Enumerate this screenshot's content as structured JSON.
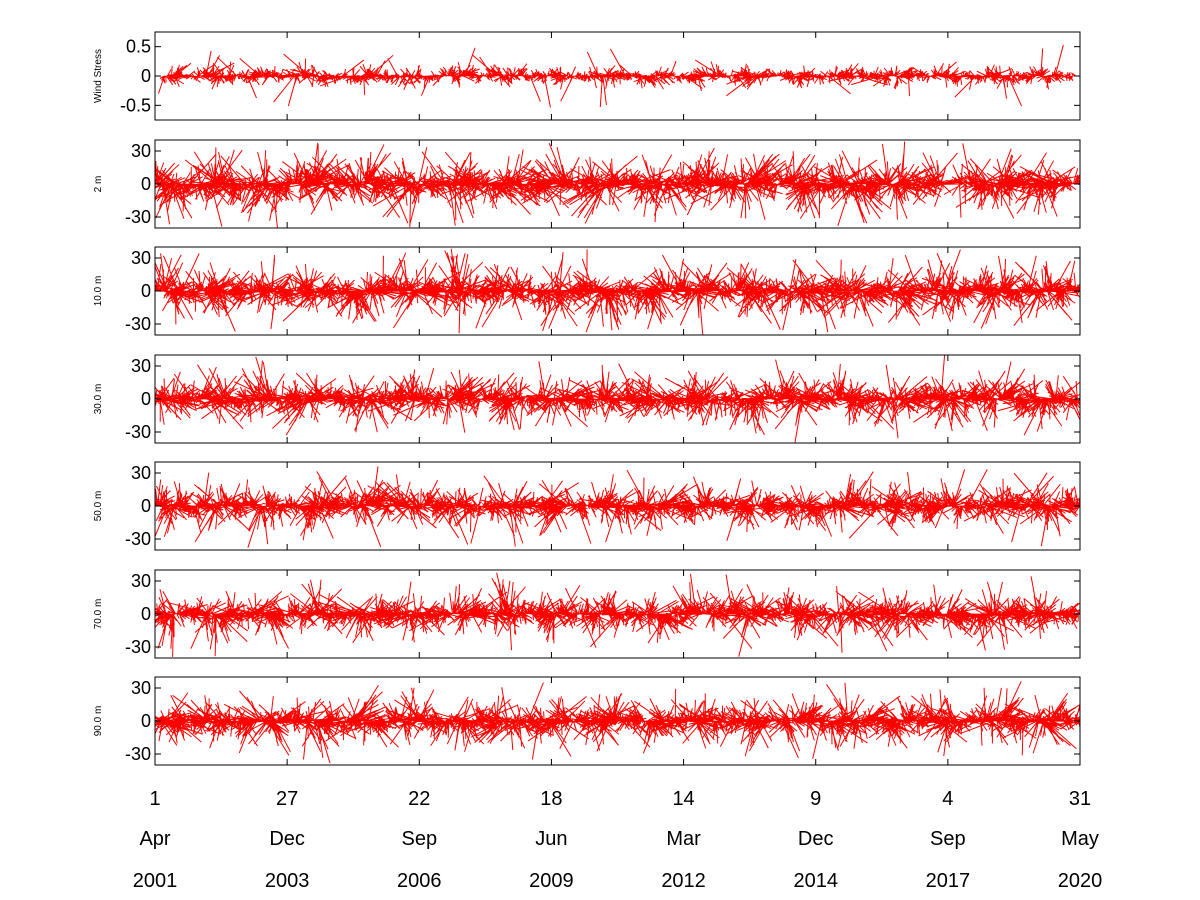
{
  "chart_data": {
    "type": "stick-plot",
    "title": "",
    "color": "#ff0000",
    "x_start": "2001-04-01",
    "x_end": "2020-05-31",
    "panels": [
      {
        "name": "Wind Stress",
        "ylabel": "Wind Stress",
        "ylim": [
          -0.75,
          0.75
        ],
        "yticks": [
          0.5,
          0,
          -0.5
        ],
        "ytick_labels": [
          "0.5",
          "0",
          "-0.5"
        ],
        "amplitude_typical": 0.2,
        "amplitude_max": 0.6,
        "segments": [
          [
            "2001-06-01",
            "2020-04-15"
          ]
        ]
      },
      {
        "name": "2 m",
        "ylabel": "2 m",
        "ylim": [
          -40,
          40
        ],
        "yticks": [
          30,
          0,
          -30
        ],
        "ytick_labels": [
          "30",
          "0",
          "-30"
        ],
        "amplitude_typical": 30,
        "amplitude_max": 40,
        "segments": [
          [
            "2001-04-01",
            "2017-08-01"
          ],
          [
            "2017-12-01",
            "2020-05-31"
          ]
        ]
      },
      {
        "name": "10.0 m",
        "ylabel": "10.0 m",
        "ylim": [
          -40,
          40
        ],
        "yticks": [
          30,
          0,
          -30
        ],
        "ytick_labels": [
          "30",
          "0",
          "-30"
        ],
        "amplitude_typical": 28,
        "amplitude_max": 40,
        "segments": [
          [
            "2001-04-01",
            "2008-12-01"
          ],
          [
            "2008-12-15",
            "2012-10-01"
          ],
          [
            "2012-10-15",
            "2016-11-01"
          ],
          [
            "2016-11-15",
            "2020-05-31"
          ]
        ]
      },
      {
        "name": "30.0 m",
        "ylabel": "30.0 m",
        "ylim": [
          -40,
          40
        ],
        "yticks": [
          30,
          0,
          -30
        ],
        "ytick_labels": [
          "30",
          "0",
          "-30"
        ],
        "amplitude_typical": 26,
        "amplitude_max": 40,
        "segments": [
          [
            "2001-04-01",
            "2008-12-01"
          ],
          [
            "2008-12-15",
            "2012-10-01"
          ],
          [
            "2012-10-15",
            "2016-11-01"
          ],
          [
            "2016-11-15",
            "2020-05-31"
          ]
        ]
      },
      {
        "name": "50.0 m",
        "ylabel": "50.0 m",
        "ylim": [
          -40,
          40
        ],
        "yticks": [
          30,
          0,
          -30
        ],
        "ytick_labels": [
          "30",
          "0",
          "-30"
        ],
        "amplitude_typical": 24,
        "amplitude_max": 40,
        "segments": [
          [
            "2001-04-01",
            "2008-12-01"
          ],
          [
            "2008-12-15",
            "2012-10-01"
          ],
          [
            "2012-10-15",
            "2016-11-01"
          ],
          [
            "2016-11-15",
            "2020-05-31"
          ]
        ]
      },
      {
        "name": "70.0 m",
        "ylabel": "70.0 m",
        "ylim": [
          -40,
          40
        ],
        "yticks": [
          30,
          0,
          -30
        ],
        "ytick_labels": [
          "30",
          "0",
          "-30"
        ],
        "amplitude_typical": 24,
        "amplitude_max": 40,
        "segments": [
          [
            "2001-04-01",
            "2008-12-01"
          ],
          [
            "2008-12-15",
            "2012-10-01"
          ],
          [
            "2012-10-15",
            "2018-03-01"
          ],
          [
            "2018-03-15",
            "2020-05-31"
          ]
        ]
      },
      {
        "name": "90.0 m",
        "ylabel": "90.0 m",
        "ylim": [
          -40,
          40
        ],
        "yticks": [
          30,
          0,
          -30
        ],
        "ytick_labels": [
          "30",
          "0",
          "-30"
        ],
        "amplitude_typical": 26,
        "amplitude_max": 40,
        "segments": [
          [
            "2001-04-01",
            "2008-12-01"
          ],
          [
            "2008-12-15",
            "2012-10-01"
          ],
          [
            "2012-10-15",
            "2018-03-01"
          ],
          [
            "2018-03-15",
            "2020-05-31"
          ]
        ]
      }
    ],
    "x_ticks": [
      {
        "date": "2001-04-01",
        "day": "1",
        "month": "Apr",
        "year": "2001"
      },
      {
        "date": "2003-12-27",
        "day": "27",
        "month": "Dec",
        "year": "2003"
      },
      {
        "date": "2006-09-22",
        "day": "22",
        "month": "Sep",
        "year": "2006"
      },
      {
        "date": "2009-06-18",
        "day": "18",
        "month": "Jun",
        "year": "2009"
      },
      {
        "date": "2012-03-14",
        "day": "14",
        "month": "Mar",
        "year": "2012"
      },
      {
        "date": "2014-12-09",
        "day": "9",
        "month": "Dec",
        "year": "2014"
      },
      {
        "date": "2017-09-04",
        "day": "4",
        "month": "Sep",
        "year": "2017"
      },
      {
        "date": "2020-05-31",
        "day": "31",
        "month": "May",
        "year": "2020"
      }
    ]
  }
}
